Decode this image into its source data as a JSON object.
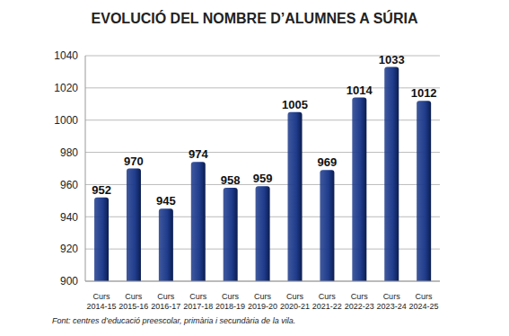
{
  "chart_data": {
    "type": "bar",
    "title": "EVOLUCIÓ DEL NOMBRE D’ALUMNES A SÚRIA",
    "source": "Font: centres d’educació preescolar, primària i secundària de la vila.",
    "categories": [
      "Curs 2014-15",
      "Curs 2015-16",
      "Curs 2016-17",
      "Curs 2017-18",
      "Curs 2018-19",
      "Curs 2019-20",
      "Curs 2020-21",
      "Curs 2021-22",
      "Curs 2022-23",
      "Curs 2023-24",
      "Curs 2024-25"
    ],
    "values": [
      952,
      970,
      945,
      974,
      958,
      959,
      1005,
      969,
      1014,
      1033,
      1012
    ],
    "color": "#1f3c8c",
    "ylim": [
      900,
      1040
    ],
    "yticks": [
      900,
      920,
      940,
      960,
      980,
      1000,
      1020,
      1040
    ],
    "grid": true,
    "data_labels": true
  }
}
